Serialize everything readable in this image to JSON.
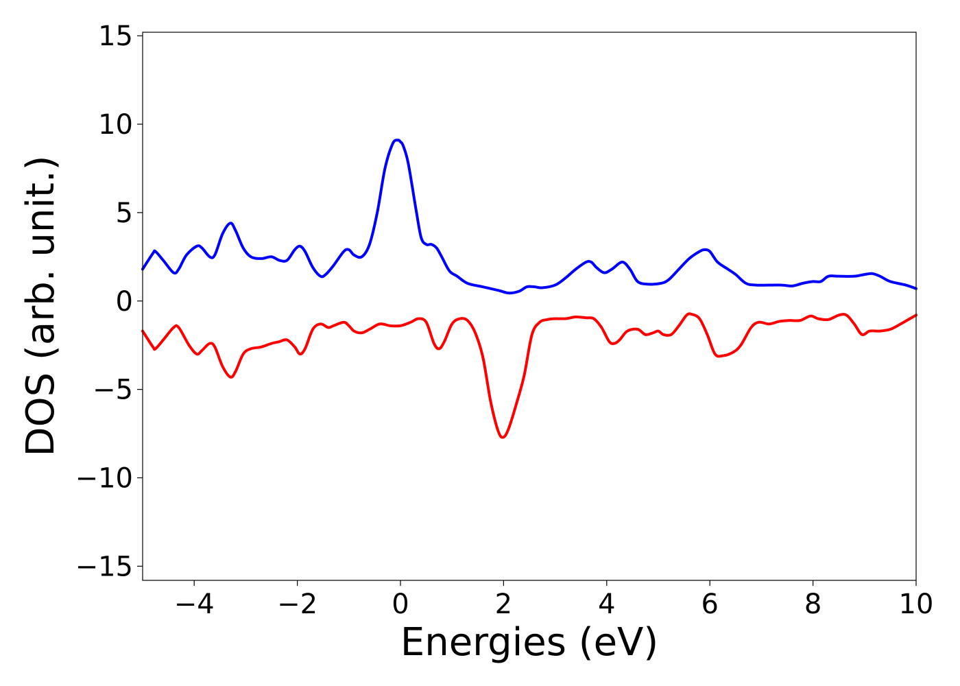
{
  "chart_data": {
    "type": "line",
    "title": "",
    "xlabel": "Energies (eV)",
    "ylabel": "DOS (arb. unit.)",
    "xlim": [
      -5,
      10
    ],
    "ylim": [
      -15.8,
      15.2
    ],
    "xticks": [
      {
        "value": -4,
        "label": "−4"
      },
      {
        "value": -2,
        "label": "−2"
      },
      {
        "value": 0,
        "label": "0"
      },
      {
        "value": 2,
        "label": "2"
      },
      {
        "value": 4,
        "label": "4"
      },
      {
        "value": 6,
        "label": "6"
      },
      {
        "value": 8,
        "label": "8"
      },
      {
        "value": 10,
        "label": "10"
      }
    ],
    "yticks": [
      {
        "value": 15,
        "label": "15"
      },
      {
        "value": 10,
        "label": "10"
      },
      {
        "value": 5,
        "label": "5"
      },
      {
        "value": 0,
        "label": "0"
      },
      {
        "value": -5,
        "label": "−5"
      },
      {
        "value": -10,
        "label": "−10"
      },
      {
        "value": -15,
        "label": "−15"
      }
    ],
    "grid": false,
    "legend": "none",
    "series": [
      {
        "color": "#0000ff",
        "x": [
          -5.0,
          -4.8,
          -4.75,
          -4.6,
          -4.4,
          -4.3,
          -4.15,
          -3.95,
          -3.85,
          -3.7,
          -3.6,
          -3.45,
          -3.3,
          -3.2,
          -3.05,
          -2.9,
          -2.7,
          -2.5,
          -2.35,
          -2.2,
          -2.05,
          -1.95,
          -1.85,
          -1.7,
          -1.55,
          -1.45,
          -1.3,
          -1.1,
          -1.0,
          -0.9,
          -0.75,
          -0.6,
          -0.45,
          -0.3,
          -0.15,
          -0.05,
          0.0,
          0.05,
          0.15,
          0.3,
          0.4,
          0.5,
          0.6,
          0.7,
          0.8,
          0.95,
          1.1,
          1.3,
          1.6,
          1.9,
          2.1,
          2.3,
          2.45,
          2.6,
          2.75,
          3.0,
          3.2,
          3.4,
          3.6,
          3.7,
          3.8,
          3.95,
          4.1,
          4.3,
          4.45,
          4.6,
          4.8,
          5.05,
          5.2,
          5.4,
          5.6,
          5.8,
          5.9,
          6.0,
          6.15,
          6.35,
          6.5,
          6.7,
          6.9,
          7.2,
          7.4,
          7.6,
          7.8,
          8.0,
          8.15,
          8.3,
          8.5,
          8.8,
          9.0,
          9.15,
          9.3,
          9.5,
          9.8,
          10.0
        ],
        "y": [
          1.8,
          2.7,
          2.8,
          2.3,
          1.6,
          1.8,
          2.6,
          3.1,
          3.0,
          2.5,
          2.6,
          3.8,
          4.4,
          4.0,
          3.0,
          2.5,
          2.4,
          2.5,
          2.3,
          2.3,
          2.9,
          3.1,
          2.8,
          1.9,
          1.4,
          1.5,
          2.0,
          2.8,
          2.9,
          2.6,
          2.5,
          3.2,
          5.0,
          7.5,
          8.9,
          9.1,
          9.0,
          8.8,
          7.8,
          5.2,
          3.6,
          3.2,
          3.2,
          3.0,
          2.5,
          1.7,
          1.4,
          1.0,
          0.8,
          0.6,
          0.45,
          0.55,
          0.8,
          0.8,
          0.75,
          0.9,
          1.3,
          1.8,
          2.2,
          2.2,
          1.9,
          1.6,
          1.8,
          2.2,
          1.8,
          1.1,
          0.95,
          1.0,
          1.2,
          1.8,
          2.4,
          2.8,
          2.9,
          2.8,
          2.2,
          1.8,
          1.5,
          1.0,
          0.9,
          0.9,
          0.9,
          0.85,
          1.0,
          1.1,
          1.1,
          1.4,
          1.4,
          1.4,
          1.5,
          1.55,
          1.4,
          1.1,
          0.9,
          0.7
        ]
      },
      {
        "color": "#ff0000",
        "x": [
          -5.0,
          -4.8,
          -4.75,
          -4.6,
          -4.4,
          -4.3,
          -4.1,
          -3.95,
          -3.85,
          -3.7,
          -3.6,
          -3.45,
          -3.3,
          -3.2,
          -3.05,
          -2.9,
          -2.7,
          -2.5,
          -2.35,
          -2.2,
          -2.05,
          -1.95,
          -1.85,
          -1.7,
          -1.55,
          -1.4,
          -1.3,
          -1.1,
          -1.0,
          -0.9,
          -0.75,
          -0.6,
          -0.4,
          -0.2,
          0.0,
          0.2,
          0.35,
          0.5,
          0.65,
          0.75,
          0.85,
          1.0,
          1.15,
          1.3,
          1.45,
          1.6,
          1.75,
          1.9,
          2.0,
          2.1,
          2.25,
          2.4,
          2.55,
          2.7,
          2.85,
          3.0,
          3.2,
          3.4,
          3.6,
          3.75,
          3.9,
          4.05,
          4.15,
          4.25,
          4.4,
          4.6,
          4.75,
          4.9,
          5.0,
          5.1,
          5.25,
          5.4,
          5.55,
          5.65,
          5.8,
          5.95,
          6.1,
          6.25,
          6.45,
          6.6,
          6.8,
          6.95,
          7.15,
          7.35,
          7.55,
          7.75,
          7.95,
          8.1,
          8.3,
          8.5,
          8.65,
          8.8,
          8.95,
          9.1,
          9.3,
          9.5,
          9.7,
          10.0
        ],
        "y": [
          -1.7,
          -2.6,
          -2.7,
          -2.2,
          -1.5,
          -1.5,
          -2.5,
          -3.0,
          -2.8,
          -2.4,
          -2.6,
          -3.7,
          -4.3,
          -4.0,
          -3.0,
          -2.7,
          -2.6,
          -2.4,
          -2.3,
          -2.2,
          -2.6,
          -3.0,
          -2.7,
          -1.6,
          -1.3,
          -1.5,
          -1.4,
          -1.2,
          -1.4,
          -1.7,
          -1.8,
          -1.6,
          -1.3,
          -1.4,
          -1.4,
          -1.2,
          -1.0,
          -1.2,
          -2.4,
          -2.7,
          -2.3,
          -1.3,
          -1.0,
          -1.1,
          -1.8,
          -3.2,
          -5.7,
          -7.4,
          -7.7,
          -7.2,
          -5.8,
          -4.2,
          -1.9,
          -1.2,
          -1.05,
          -1.0,
          -1.0,
          -0.9,
          -0.95,
          -1.0,
          -1.5,
          -2.3,
          -2.4,
          -2.2,
          -1.7,
          -1.6,
          -1.9,
          -1.8,
          -1.7,
          -1.9,
          -1.9,
          -1.4,
          -0.8,
          -0.75,
          -1.0,
          -1.9,
          -3.0,
          -3.1,
          -2.9,
          -2.5,
          -1.5,
          -1.2,
          -1.3,
          -1.15,
          -1.1,
          -1.1,
          -0.85,
          -1.0,
          -1.05,
          -0.8,
          -0.8,
          -1.3,
          -1.9,
          -1.7,
          -1.7,
          -1.6,
          -1.3,
          -0.8
        ]
      }
    ]
  }
}
